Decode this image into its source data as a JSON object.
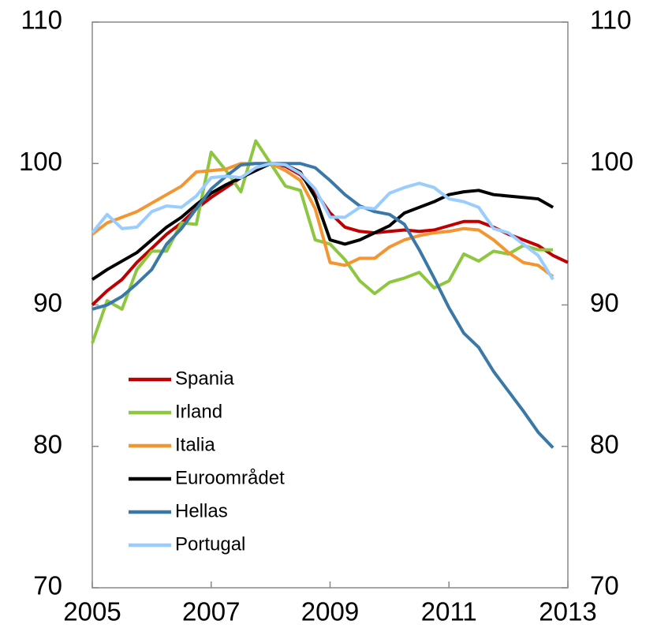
{
  "chart_data": {
    "type": "line",
    "x": [
      2005,
      2005.25,
      2005.5,
      2005.75,
      2006,
      2006.25,
      2006.5,
      2006.75,
      2007,
      2007.25,
      2007.5,
      2007.75,
      2008,
      2008.25,
      2008.5,
      2008.75,
      2009,
      2009.25,
      2009.5,
      2009.75,
      2010,
      2010.25,
      2010.5,
      2010.75,
      2011,
      2011.25,
      2011.5,
      2011.75,
      2012,
      2012.25,
      2012.5,
      2012.75,
      2013
    ],
    "series": [
      {
        "name": "Spania",
        "color": "#c00000",
        "values": [
          90,
          91,
          91.8,
          93,
          94,
          95,
          95.8,
          96.8,
          97.6,
          98.3,
          99,
          99.6,
          100,
          99.8,
          99.2,
          98,
          96.5,
          95.5,
          95.2,
          95.1,
          95.2,
          95.3,
          95.2,
          95.3,
          95.6,
          95.9,
          95.9,
          95.5,
          95,
          94.6,
          94.2,
          93.5,
          93
        ]
      },
      {
        "name": "Irland",
        "color": "#8dc63f",
        "values": [
          87.3,
          90.3,
          89.7,
          92.5,
          93.8,
          93.8,
          95.8,
          95.7,
          100.8,
          99.5,
          98,
          101.6,
          100,
          98.4,
          98.1,
          94.6,
          94.3,
          93.2,
          91.7,
          90.8,
          91.6,
          91.9,
          92.3,
          91.2,
          91.7,
          93.6,
          93.1,
          93.8,
          93.6,
          94.2,
          93.9,
          93.9,
          null
        ]
      },
      {
        "name": "Italia",
        "color": "#f39530",
        "values": [
          95,
          95.8,
          96.2,
          96.6,
          97.2,
          97.8,
          98.4,
          99.4,
          99.5,
          99.6,
          100,
          100,
          100,
          99.5,
          98.8,
          96.8,
          93,
          92.8,
          93.3,
          93.3,
          94.1,
          94.6,
          94.9,
          95.1,
          95.2,
          95.4,
          95.3,
          94.6,
          93.7,
          93,
          92.8,
          92,
          null
        ]
      },
      {
        "name": "Euroområdet",
        "color": "#000000",
        "values": [
          91.8,
          92.5,
          93.1,
          93.7,
          94.6,
          95.5,
          96.2,
          97.1,
          97.9,
          98.5,
          99,
          99.5,
          100,
          99.9,
          99.4,
          97.6,
          94.6,
          94.3,
          94.6,
          95.1,
          95.6,
          96.5,
          96.9,
          97.3,
          97.8,
          98,
          98.1,
          97.8,
          97.7,
          97.6,
          97.5,
          96.9,
          null
        ]
      },
      {
        "name": "Hellas",
        "color": "#3a78a8",
        "values": [
          89.7,
          90,
          90.6,
          91.5,
          92.5,
          94.3,
          95.4,
          96.8,
          98.2,
          99.1,
          99.9,
          100,
          100,
          100,
          100,
          99.7,
          98.8,
          97.8,
          97,
          96.6,
          96.4,
          95.7,
          93.9,
          91.9,
          89.8,
          88,
          87,
          85.3,
          83.9,
          82.5,
          81,
          79.9,
          null
        ]
      },
      {
        "name": "Portugal",
        "color": "#99ccff",
        "values": [
          95.1,
          96.4,
          95.4,
          95.5,
          96.6,
          97,
          96.9,
          97.7,
          99,
          99.1,
          99,
          99.7,
          100,
          99.9,
          99.3,
          98.2,
          96.2,
          96.2,
          96.9,
          96.8,
          97.9,
          98.3,
          98.6,
          98.3,
          97.5,
          97.3,
          96.9,
          95.4,
          95.1,
          94.3,
          93.5,
          91.8,
          null
        ]
      }
    ],
    "xlim": [
      2005,
      2013
    ],
    "xticks": [
      2005,
      2007,
      2009,
      2011,
      2013
    ],
    "ylim": [
      70,
      110
    ],
    "yticks": [
      70,
      80,
      90,
      100,
      110
    ],
    "y2lim": [
      70,
      110
    ],
    "y2ticks": [
      70,
      80,
      90,
      100,
      110
    ],
    "legend": "lower left",
    "grid": false
  }
}
